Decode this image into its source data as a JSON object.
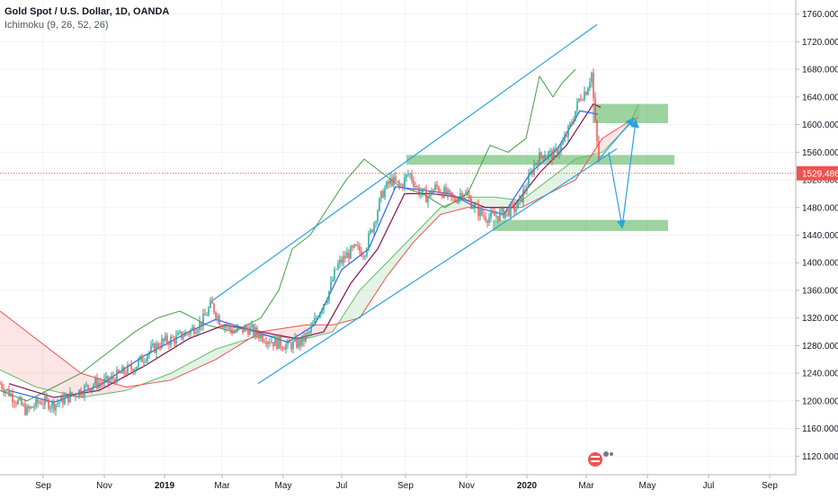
{
  "legend": {
    "title": "Gold Spot / U.S. Dollar, 1D, OANDA",
    "indicator": "Ichimoku (9, 26, 52, 26)"
  },
  "colors": {
    "up_candle": "#26a69a",
    "down_candle": "#ef5350",
    "tenkan": "#2962ff",
    "kijun": "#880e4f",
    "chikou": "#43a047",
    "senkou_a": "#66bb6a",
    "senkou_b": "#ef5350",
    "kumo_bull": "rgba(76,175,80,0.15)",
    "kumo_bear": "rgba(239,83,80,0.15)",
    "channel": "#29a3de",
    "zone": "rgba(76,175,80,0.55)",
    "current_price": "#ef5350"
  },
  "chart_data": {
    "type": "candlestick",
    "symbol": "Gold Spot / U.S. Dollar",
    "interval": "1D",
    "source": "OANDA",
    "ylim": [
      1110,
      1770
    ],
    "yticks": [
      1120,
      1160,
      1200,
      1240,
      1280,
      1320,
      1360,
      1400,
      1440,
      1480,
      1520,
      1560,
      1600,
      1640,
      1680,
      1720,
      1760
    ],
    "ytick_labels": [
      "1120.000",
      "1160.000",
      "1200.000",
      "1240.000",
      "1280.000",
      "1320.000",
      "1360.000",
      "1400.000",
      "1440.000",
      "1480.000",
      "1520.000",
      "1560.000",
      "1600.000",
      "1640.000",
      "1680.000",
      "1720.000",
      "1760.000"
    ],
    "x_axis_labels": [
      {
        "label": "Sep",
        "bold": false
      },
      {
        "label": "Nov",
        "bold": false
      },
      {
        "label": "2019",
        "bold": true
      },
      {
        "label": "Mar",
        "bold": false
      },
      {
        "label": "May",
        "bold": false
      },
      {
        "label": "Jul",
        "bold": false
      },
      {
        "label": "Sep",
        "bold": false
      },
      {
        "label": "Nov",
        "bold": false
      },
      {
        "label": "2020",
        "bold": true
      },
      {
        "label": "Mar",
        "bold": false
      },
      {
        "label": "May",
        "bold": false
      },
      {
        "label": "Jul",
        "bold": false
      },
      {
        "label": "Sep",
        "bold": false
      }
    ],
    "current_price": 1529.486,
    "current_price_label": "1529.486",
    "price_path": [
      {
        "t": 0,
        "p": 1225
      },
      {
        "t": 15,
        "p": 1205
      },
      {
        "t": 30,
        "p": 1185
      },
      {
        "t": 45,
        "p": 1200
      },
      {
        "t": 60,
        "p": 1195
      },
      {
        "t": 75,
        "p": 1205
      },
      {
        "t": 90,
        "p": 1215
      },
      {
        "t": 105,
        "p": 1225
      },
      {
        "t": 120,
        "p": 1228
      },
      {
        "t": 135,
        "p": 1240
      },
      {
        "t": 150,
        "p": 1250
      },
      {
        "t": 165,
        "p": 1270
      },
      {
        "t": 180,
        "p": 1285
      },
      {
        "t": 195,
        "p": 1290
      },
      {
        "t": 210,
        "p": 1300
      },
      {
        "t": 225,
        "p": 1315
      },
      {
        "t": 235,
        "p": 1340
      },
      {
        "t": 245,
        "p": 1315
      },
      {
        "t": 260,
        "p": 1300
      },
      {
        "t": 275,
        "p": 1305
      },
      {
        "t": 290,
        "p": 1295
      },
      {
        "t": 305,
        "p": 1285
      },
      {
        "t": 320,
        "p": 1280
      },
      {
        "t": 335,
        "p": 1285
      },
      {
        "t": 345,
        "p": 1300
      },
      {
        "t": 355,
        "p": 1330
      },
      {
        "t": 365,
        "p": 1355
      },
      {
        "t": 375,
        "p": 1395
      },
      {
        "t": 385,
        "p": 1410
      },
      {
        "t": 395,
        "p": 1420
      },
      {
        "t": 405,
        "p": 1415
      },
      {
        "t": 415,
        "p": 1455
      },
      {
        "t": 425,
        "p": 1500
      },
      {
        "t": 435,
        "p": 1520
      },
      {
        "t": 445,
        "p": 1510
      },
      {
        "t": 455,
        "p": 1530
      },
      {
        "t": 465,
        "p": 1505
      },
      {
        "t": 475,
        "p": 1495
      },
      {
        "t": 485,
        "p": 1510
      },
      {
        "t": 495,
        "p": 1500
      },
      {
        "t": 505,
        "p": 1490
      },
      {
        "t": 515,
        "p": 1505
      },
      {
        "t": 525,
        "p": 1485
      },
      {
        "t": 535,
        "p": 1470
      },
      {
        "t": 545,
        "p": 1465
      },
      {
        "t": 555,
        "p": 1470
      },
      {
        "t": 565,
        "p": 1475
      },
      {
        "t": 575,
        "p": 1480
      },
      {
        "t": 585,
        "p": 1510
      },
      {
        "t": 595,
        "p": 1545
      },
      {
        "t": 605,
        "p": 1560
      },
      {
        "t": 615,
        "p": 1555
      },
      {
        "t": 625,
        "p": 1570
      },
      {
        "t": 635,
        "p": 1600
      },
      {
        "t": 645,
        "p": 1640
      },
      {
        "t": 652,
        "p": 1650
      },
      {
        "t": 658,
        "p": 1675
      },
      {
        "t": 662,
        "p": 1600
      },
      {
        "t": 667,
        "p": 1535
      }
    ],
    "tenkan": [
      {
        "t": 10,
        "p": 1215
      },
      {
        "t": 60,
        "p": 1198
      },
      {
        "t": 110,
        "p": 1222
      },
      {
        "t": 160,
        "p": 1265
      },
      {
        "t": 210,
        "p": 1300
      },
      {
        "t": 240,
        "p": 1318
      },
      {
        "t": 280,
        "p": 1302
      },
      {
        "t": 320,
        "p": 1285
      },
      {
        "t": 350,
        "p": 1310
      },
      {
        "t": 380,
        "p": 1390
      },
      {
        "t": 410,
        "p": 1420
      },
      {
        "t": 440,
        "p": 1510
      },
      {
        "t": 470,
        "p": 1505
      },
      {
        "t": 500,
        "p": 1500
      },
      {
        "t": 530,
        "p": 1480
      },
      {
        "t": 560,
        "p": 1470
      },
      {
        "t": 590,
        "p": 1530
      },
      {
        "t": 620,
        "p": 1565
      },
      {
        "t": 645,
        "p": 1620
      },
      {
        "t": 665,
        "p": 1615
      }
    ],
    "kijun": [
      {
        "t": 10,
        "p": 1225
      },
      {
        "t": 60,
        "p": 1205
      },
      {
        "t": 110,
        "p": 1215
      },
      {
        "t": 160,
        "p": 1250
      },
      {
        "t": 210,
        "p": 1290
      },
      {
        "t": 250,
        "p": 1310
      },
      {
        "t": 290,
        "p": 1300
      },
      {
        "t": 330,
        "p": 1290
      },
      {
        "t": 360,
        "p": 1300
      },
      {
        "t": 390,
        "p": 1370
      },
      {
        "t": 420,
        "p": 1420
      },
      {
        "t": 450,
        "p": 1500
      },
      {
        "t": 480,
        "p": 1500
      },
      {
        "t": 510,
        "p": 1495
      },
      {
        "t": 540,
        "p": 1480
      },
      {
        "t": 570,
        "p": 1480
      },
      {
        "t": 600,
        "p": 1530
      },
      {
        "t": 630,
        "p": 1570
      },
      {
        "t": 660,
        "p": 1630
      },
      {
        "t": 668,
        "p": 1625
      }
    ],
    "chikou": [
      {
        "t": 0,
        "p": 1215
      },
      {
        "t": 30,
        "p": 1200
      },
      {
        "t": 60,
        "p": 1220
      },
      {
        "t": 90,
        "p": 1240
      },
      {
        "t": 120,
        "p": 1270
      },
      {
        "t": 150,
        "p": 1300
      },
      {
        "t": 175,
        "p": 1320
      },
      {
        "t": 200,
        "p": 1330
      },
      {
        "t": 230,
        "p": 1310
      },
      {
        "t": 260,
        "p": 1300
      },
      {
        "t": 290,
        "p": 1320
      },
      {
        "t": 310,
        "p": 1360
      },
      {
        "t": 325,
        "p": 1420
      },
      {
        "t": 345,
        "p": 1440
      },
      {
        "t": 365,
        "p": 1480
      },
      {
        "t": 385,
        "p": 1520
      },
      {
        "t": 405,
        "p": 1550
      },
      {
        "t": 425,
        "p": 1530
      },
      {
        "t": 445,
        "p": 1510
      },
      {
        "t": 470,
        "p": 1500
      },
      {
        "t": 495,
        "p": 1480
      },
      {
        "t": 520,
        "p": 1500
      },
      {
        "t": 545,
        "p": 1570
      },
      {
        "t": 565,
        "p": 1560
      },
      {
        "t": 585,
        "p": 1580
      },
      {
        "t": 600,
        "p": 1670
      },
      {
        "t": 615,
        "p": 1640
      },
      {
        "t": 625,
        "p": 1660
      },
      {
        "t": 640,
        "p": 1680
      }
    ],
    "senkou_a": [
      {
        "t": 0,
        "p": 1245
      },
      {
        "t": 40,
        "p": 1220
      },
      {
        "t": 90,
        "p": 1205
      },
      {
        "t": 140,
        "p": 1215
      },
      {
        "t": 190,
        "p": 1240
      },
      {
        "t": 240,
        "p": 1275
      },
      {
        "t": 290,
        "p": 1295
      },
      {
        "t": 340,
        "p": 1290
      },
      {
        "t": 370,
        "p": 1300
      },
      {
        "t": 400,
        "p": 1360
      },
      {
        "t": 430,
        "p": 1400
      },
      {
        "t": 460,
        "p": 1440
      },
      {
        "t": 490,
        "p": 1480
      },
      {
        "t": 520,
        "p": 1495
      },
      {
        "t": 550,
        "p": 1495
      },
      {
        "t": 580,
        "p": 1490
      },
      {
        "t": 610,
        "p": 1520
      },
      {
        "t": 640,
        "p": 1550
      },
      {
        "t": 670,
        "p": 1560
      },
      {
        "t": 700,
        "p": 1600
      },
      {
        "t": 710,
        "p": 1630
      }
    ],
    "senkou_b": [
      {
        "t": 0,
        "p": 1330
      },
      {
        "t": 40,
        "p": 1290
      },
      {
        "t": 90,
        "p": 1240
      },
      {
        "t": 140,
        "p": 1220
      },
      {
        "t": 190,
        "p": 1230
      },
      {
        "t": 240,
        "p": 1260
      },
      {
        "t": 290,
        "p": 1300
      },
      {
        "t": 340,
        "p": 1310
      },
      {
        "t": 370,
        "p": 1310
      },
      {
        "t": 400,
        "p": 1320
      },
      {
        "t": 430,
        "p": 1380
      },
      {
        "t": 460,
        "p": 1430
      },
      {
        "t": 490,
        "p": 1470
      },
      {
        "t": 520,
        "p": 1480
      },
      {
        "t": 550,
        "p": 1480
      },
      {
        "t": 580,
        "p": 1480
      },
      {
        "t": 610,
        "p": 1500
      },
      {
        "t": 640,
        "p": 1520
      },
      {
        "t": 670,
        "p": 1580
      },
      {
        "t": 700,
        "p": 1605
      },
      {
        "t": 710,
        "p": 1610
      }
    ],
    "channel_upper": [
      {
        "t": 236,
        "p": 1345
      },
      {
        "t": 664,
        "p": 1745
      }
    ],
    "channel_lower": [
      {
        "t": 287,
        "p": 1225
      },
      {
        "t": 686,
        "p": 1565
      }
    ],
    "zones": [
      {
        "t1": 659,
        "t2": 743,
        "p1": 1602,
        "p2": 1630
      },
      {
        "t1": 452,
        "t2": 750,
        "p1": 1542,
        "p2": 1556
      },
      {
        "t1": 548,
        "t2": 743,
        "p1": 1446,
        "p2": 1462
      }
    ],
    "arrows": [
      {
        "from": {
          "t": 663,
          "p": 1545
        },
        "to": {
          "t": 704,
          "p": 1608
        }
      },
      {
        "from": {
          "t": 677,
          "p": 1560
        },
        "to": {
          "t": 692,
          "p": 1452
        }
      },
      {
        "from": {
          "t": 692,
          "p": 1452
        },
        "to": {
          "t": 707,
          "p": 1605
        }
      }
    ]
  }
}
